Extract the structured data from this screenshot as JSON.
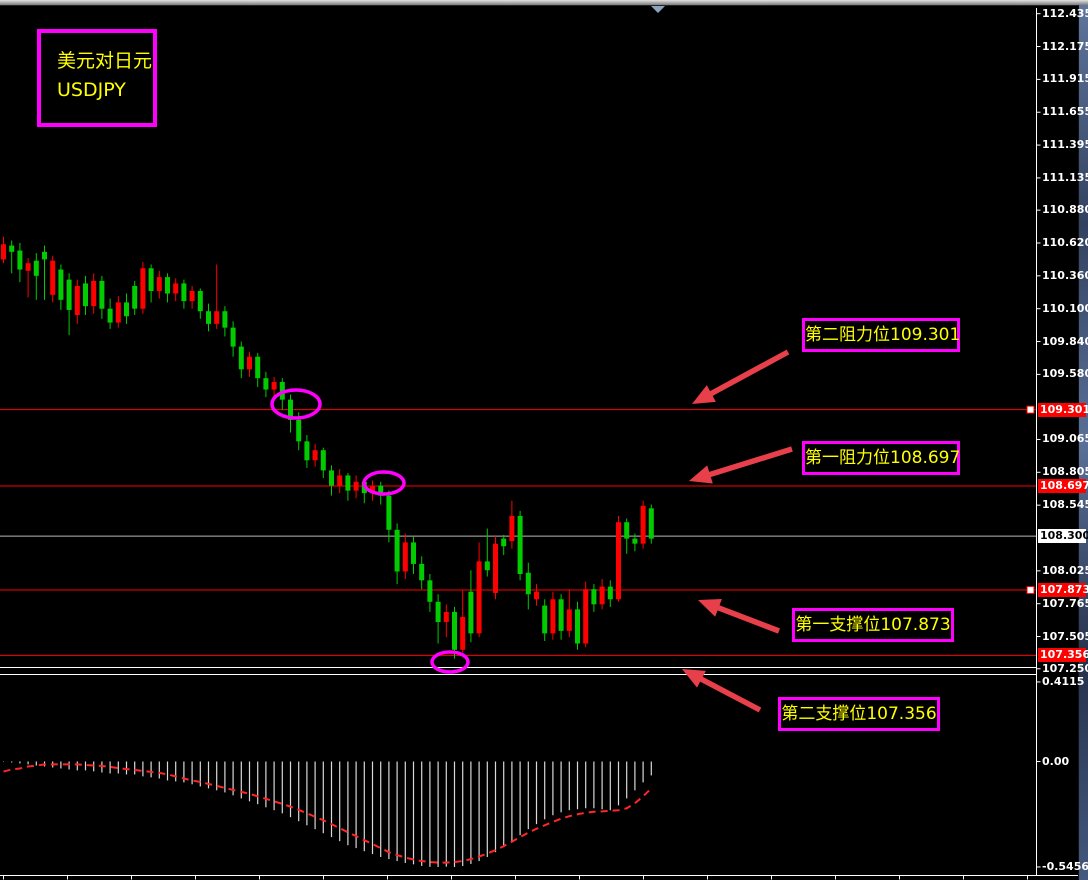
{
  "window": {
    "symbol_box": {
      "line1": "美元对日元",
      "line2": "USDJPY"
    }
  },
  "annotations": {
    "resistance2": "第二阻力位109.301",
    "resistance1": "第一阻力位108.697",
    "support1": "第一支撑位107.873",
    "support2": "第二支撑位107.356"
  },
  "colors": {
    "background": "#000000",
    "up": "#ff0000",
    "down": "#00cc00",
    "level_line": "#ff0000",
    "current_line": "#b8b8b8",
    "annotation_border": "#ff00ff",
    "annotation_text": "#ffff00",
    "arrow": "#e8404a",
    "histogram": "#d9d9d9",
    "signal": "#ff2626",
    "axis_text": "#ffffff",
    "axis_line": "#ffffff"
  },
  "chart_data": {
    "type": "candlestick",
    "title": "USDJPY",
    "legend_position": "none",
    "grid": false,
    "y_range_main": [
      107.26,
      112.48
    ],
    "indicator_range": [
      -0.5456,
      0.4115
    ],
    "price_axis_labels": [
      "112.435",
      "112.175",
      "111.915",
      "111.655",
      "111.395",
      "111.135",
      "110.880",
      "110.620",
      "110.360",
      "110.100",
      "109.840",
      "109.580",
      "109.065",
      "108.805",
      "108.545",
      "108.025",
      "107.765",
      "107.505",
      "107.250"
    ],
    "levels": [
      {
        "price": 109.301,
        "label": "109.301",
        "kind": "resistance",
        "handle": true
      },
      {
        "price": 108.697,
        "label": "108.697",
        "kind": "resistance",
        "handle": false
      },
      {
        "price": 107.873,
        "label": "107.873",
        "kind": "support",
        "handle": true
      },
      {
        "price": 107.356,
        "label": "107.356",
        "kind": "support",
        "handle": false
      }
    ],
    "current_price": 108.3,
    "current_price_label": "108.300",
    "candles": [
      [
        110.49,
        110.67,
        110.46,
        110.61
      ],
      [
        110.6,
        110.64,
        110.38,
        110.55
      ],
      [
        110.56,
        110.62,
        110.31,
        110.41
      ],
      [
        110.4,
        110.5,
        110.19,
        110.46
      ],
      [
        110.48,
        110.54,
        110.17,
        110.36
      ],
      [
        110.55,
        110.6,
        110.17,
        110.49
      ],
      [
        110.21,
        110.52,
        110.15,
        110.48
      ],
      [
        110.41,
        110.45,
        110.09,
        110.17
      ],
      [
        110.33,
        110.38,
        109.89,
        110.09
      ],
      [
        110.05,
        110.33,
        109.98,
        110.28
      ],
      [
        110.3,
        110.36,
        110.05,
        110.12
      ],
      [
        110.12,
        110.38,
        110.06,
        110.32
      ],
      [
        110.32,
        110.36,
        110.02,
        110.1
      ],
      [
        110.1,
        110.18,
        109.94,
        109.99
      ],
      [
        109.99,
        110.2,
        109.95,
        110.15
      ],
      [
        110.15,
        110.22,
        109.98,
        110.04
      ],
      [
        110.28,
        110.32,
        110.05,
        110.1
      ],
      [
        110.1,
        110.47,
        110.06,
        110.42
      ],
      [
        110.42,
        110.45,
        110.15,
        110.24
      ],
      [
        110.24,
        110.4,
        110.18,
        110.35
      ],
      [
        110.35,
        110.38,
        110.15,
        110.22
      ],
      [
        110.22,
        110.34,
        110.16,
        110.3
      ],
      [
        110.3,
        110.33,
        110.1,
        110.16
      ],
      [
        110.16,
        110.28,
        110.1,
        110.24
      ],
      [
        110.24,
        110.26,
        110.02,
        110.08
      ],
      [
        110.08,
        110.14,
        109.92,
        109.98
      ],
      [
        109.98,
        110.45,
        109.94,
        110.08
      ],
      [
        110.08,
        110.12,
        109.88,
        109.95
      ],
      [
        109.95,
        110.0,
        109.72,
        109.8
      ],
      [
        109.8,
        109.84,
        109.55,
        109.62
      ],
      [
        109.62,
        109.76,
        109.56,
        109.72
      ],
      [
        109.72,
        109.75,
        109.48,
        109.55
      ],
      [
        109.55,
        109.6,
        109.4,
        109.46
      ],
      [
        109.46,
        109.56,
        109.4,
        109.52
      ],
      [
        109.52,
        109.55,
        109.3,
        109.38
      ],
      [
        109.38,
        109.42,
        109.12,
        109.22
      ],
      [
        109.22,
        109.28,
        108.98,
        109.05
      ],
      [
        109.05,
        109.1,
        108.84,
        108.9
      ],
      [
        108.9,
        109.03,
        108.85,
        108.98
      ],
      [
        108.98,
        109.0,
        108.76,
        108.82
      ],
      [
        108.82,
        108.86,
        108.62,
        108.7
      ],
      [
        108.7,
        108.83,
        108.64,
        108.78
      ],
      [
        108.78,
        108.8,
        108.58,
        108.66
      ],
      [
        108.66,
        108.78,
        108.6,
        108.73
      ],
      [
        108.73,
        108.76,
        108.56,
        108.64
      ],
      [
        108.64,
        108.74,
        108.58,
        108.7
      ],
      [
        108.7,
        108.73,
        108.55,
        108.62
      ],
      [
        108.62,
        108.66,
        108.25,
        108.35
      ],
      [
        108.35,
        108.4,
        107.92,
        108.02
      ],
      [
        108.02,
        108.32,
        107.96,
        108.25
      ],
      [
        108.25,
        108.3,
        108.0,
        108.08
      ],
      [
        108.08,
        108.14,
        107.88,
        107.95
      ],
      [
        107.95,
        108.0,
        107.7,
        107.78
      ],
      [
        107.78,
        107.84,
        107.45,
        107.62
      ],
      [
        107.62,
        107.76,
        107.5,
        107.7
      ],
      [
        107.7,
        107.74,
        107.33,
        107.4
      ],
      [
        107.4,
        107.87,
        107.38,
        107.66
      ],
      [
        107.86,
        108.03,
        107.46,
        107.53
      ],
      [
        107.53,
        108.25,
        107.5,
        108.1
      ],
      [
        108.1,
        108.36,
        107.98,
        108.03
      ],
      [
        107.85,
        108.3,
        107.8,
        108.24
      ],
      [
        108.28,
        108.31,
        108.15,
        108.22
      ],
      [
        108.26,
        108.58,
        108.2,
        108.46
      ],
      [
        108.46,
        108.5,
        107.95,
        108.0
      ],
      [
        108.01,
        108.09,
        107.72,
        107.84
      ],
      [
        107.8,
        107.92,
        107.75,
        107.86
      ],
      [
        107.75,
        107.8,
        107.47,
        107.53
      ],
      [
        107.53,
        107.86,
        107.48,
        107.8
      ],
      [
        107.8,
        107.84,
        107.48,
        107.55
      ],
      [
        107.55,
        107.88,
        107.5,
        107.72
      ],
      [
        107.72,
        107.78,
        107.4,
        107.45
      ],
      [
        107.45,
        107.94,
        107.42,
        107.88
      ],
      [
        107.88,
        107.92,
        107.7,
        107.76
      ],
      [
        107.76,
        107.96,
        107.72,
        107.9
      ],
      [
        107.9,
        107.95,
        107.74,
        107.8
      ],
      [
        107.8,
        108.46,
        107.78,
        108.41
      ],
      [
        108.41,
        108.44,
        108.16,
        108.28
      ],
      [
        108.28,
        108.32,
        108.18,
        108.24
      ],
      [
        108.24,
        108.58,
        108.2,
        108.54
      ],
      [
        108.52,
        108.55,
        108.24,
        108.28
      ]
    ],
    "macd": {
      "histogram": [
        -0.002,
        -0.005,
        -0.01,
        -0.015,
        -0.021,
        -0.026,
        -0.031,
        -0.036,
        -0.041,
        -0.046,
        -0.046,
        -0.051,
        -0.057,
        -0.062,
        -0.062,
        -0.067,
        -0.067,
        -0.077,
        -0.082,
        -0.088,
        -0.098,
        -0.103,
        -0.108,
        -0.118,
        -0.129,
        -0.139,
        -0.149,
        -0.16,
        -0.175,
        -0.191,
        -0.206,
        -0.221,
        -0.237,
        -0.252,
        -0.268,
        -0.288,
        -0.309,
        -0.33,
        -0.35,
        -0.371,
        -0.391,
        -0.412,
        -0.433,
        -0.448,
        -0.464,
        -0.479,
        -0.494,
        -0.505,
        -0.515,
        -0.525,
        -0.532,
        -0.54,
        -0.545,
        -0.546,
        -0.544,
        -0.546,
        -0.541,
        -0.53,
        -0.515,
        -0.494,
        -0.469,
        -0.443,
        -0.412,
        -0.381,
        -0.35,
        -0.324,
        -0.299,
        -0.278,
        -0.263,
        -0.252,
        -0.247,
        -0.242,
        -0.242,
        -0.247,
        -0.252,
        -0.227,
        -0.191,
        -0.149,
        -0.108,
        -0.072
      ],
      "signal": [
        -0.052,
        -0.041,
        -0.036,
        -0.026,
        -0.021,
        -0.015,
        -0.015,
        -0.015,
        -0.015,
        -0.015,
        -0.018,
        -0.021,
        -0.023,
        -0.028,
        -0.034,
        -0.039,
        -0.044,
        -0.049,
        -0.054,
        -0.059,
        -0.067,
        -0.077,
        -0.088,
        -0.098,
        -0.106,
        -0.116,
        -0.126,
        -0.137,
        -0.147,
        -0.157,
        -0.167,
        -0.18,
        -0.193,
        -0.206,
        -0.219,
        -0.234,
        -0.25,
        -0.268,
        -0.286,
        -0.304,
        -0.324,
        -0.345,
        -0.366,
        -0.386,
        -0.407,
        -0.427,
        -0.448,
        -0.469,
        -0.484,
        -0.497,
        -0.507,
        -0.515,
        -0.52,
        -0.523,
        -0.523,
        -0.52,
        -0.515,
        -0.505,
        -0.492,
        -0.476,
        -0.458,
        -0.438,
        -0.415,
        -0.391,
        -0.368,
        -0.348,
        -0.33,
        -0.312,
        -0.296,
        -0.283,
        -0.273,
        -0.265,
        -0.26,
        -0.258,
        -0.255,
        -0.252,
        -0.242,
        -0.216,
        -0.18,
        -0.139
      ],
      "axis_labels": [
        {
          "label": "0.4115",
          "value": 0.4115
        },
        {
          "label": "0.00",
          "value": 0
        },
        {
          "label": "-0.5456",
          "value": -0.5456
        }
      ]
    }
  }
}
